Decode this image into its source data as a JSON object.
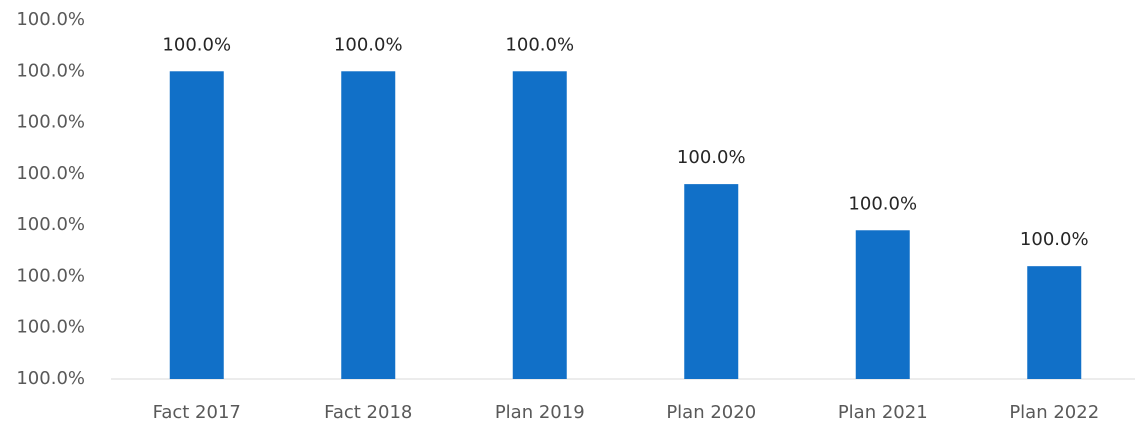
{
  "chart_data": {
    "type": "bar",
    "categories": [
      "Fact 2017",
      "Fact 2018",
      "Plan 2019",
      "Plan 2020",
      "Plan 2021",
      "Plan 2022"
    ],
    "values": [
      6,
      6,
      6,
      3.8,
      2.9,
      2.2
    ],
    "value_labels": [
      "100.0%",
      "100.0%",
      "100.0%",
      "100.0%",
      "100.0%",
      "100.0%"
    ],
    "color": "#1170c8",
    "ylim": [
      0,
      7
    ],
    "yticks": [
      {
        "value": 0,
        "label": "100.0%"
      },
      {
        "value": 1,
        "label": "100.0%"
      },
      {
        "value": 2,
        "label": "100.0%"
      },
      {
        "value": 3,
        "label": "100.0%"
      },
      {
        "value": 4,
        "label": "100.0%"
      },
      {
        "value": 5,
        "label": "100.0%"
      },
      {
        "value": 6,
        "label": "100.0%"
      },
      {
        "value": 7,
        "label": "100.0%"
      }
    ],
    "grid": false
  }
}
